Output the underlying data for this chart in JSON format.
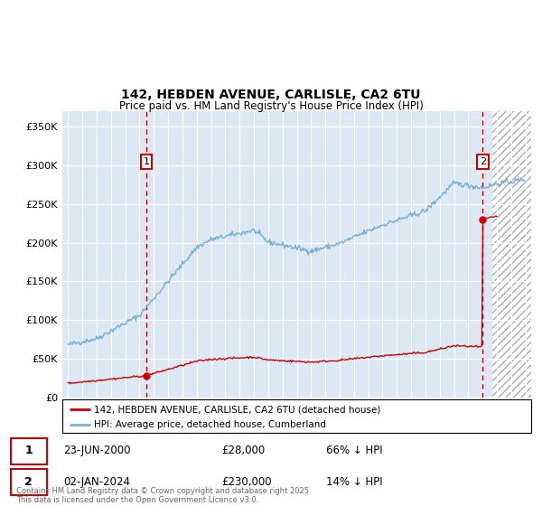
{
  "title_line1": "142, HEBDEN AVENUE, CARLISLE, CA2 6TU",
  "title_line2": "Price paid vs. HM Land Registry's House Price Index (HPI)",
  "plot_bg_color": "#dce9f5",
  "grid_color": "#ffffff",
  "red_line_color": "#cc0000",
  "blue_line_color": "#7bafd4",
  "legend_label_red": "142, HEBDEN AVENUE, CARLISLE, CA2 6TU (detached house)",
  "legend_label_blue": "HPI: Average price, detached house, Cumberland",
  "annotation1_date": "23-JUN-2000",
  "annotation1_price": "£28,000",
  "annotation1_hpi": "66% ↓ HPI",
  "annotation2_date": "02-JAN-2024",
  "annotation2_price": "£230,000",
  "annotation2_hpi": "14% ↓ HPI",
  "footnote": "Contains HM Land Registry data © Crown copyright and database right 2025.\nThis data is licensed under the Open Government Licence v3.0.",
  "ylim": [
    0,
    370000
  ],
  "yticks": [
    0,
    50000,
    100000,
    150000,
    200000,
    250000,
    300000,
    350000
  ],
  "ytick_labels": [
    "£0",
    "£50K",
    "£100K",
    "£150K",
    "£200K",
    "£250K",
    "£300K",
    "£350K"
  ],
  "sale1_year": 2000.48,
  "sale1_price": 28000,
  "sale2_year": 2024.01,
  "sale2_price": 230000,
  "hatch_start": 2024.7,
  "xlim_left": 1994.6,
  "xlim_right": 2027.4
}
